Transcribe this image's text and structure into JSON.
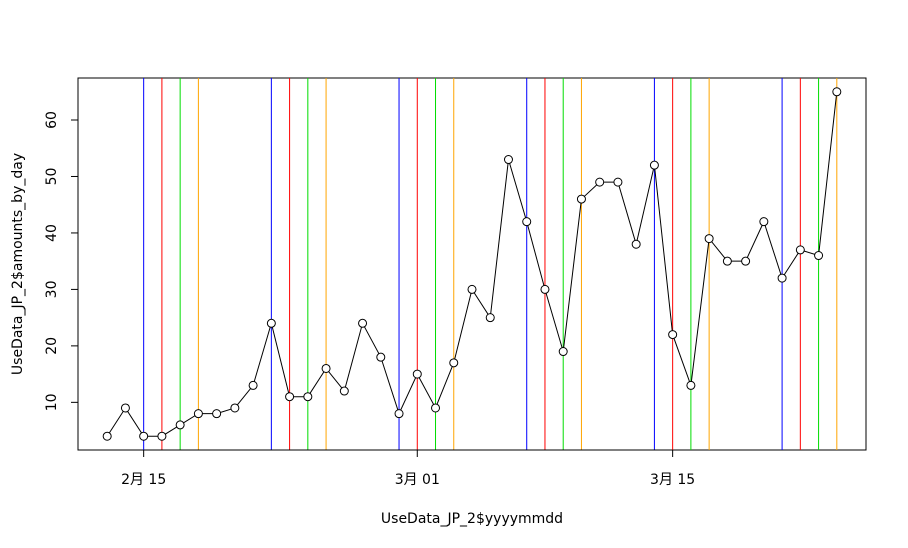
{
  "chart_data": {
    "type": "line",
    "xlabel": "UseData_JP_2$yyyymmdd",
    "ylabel": "UseData_JP_2$amounts_by_day",
    "x": [
      "2月 13",
      "2月 14",
      "2月 15",
      "2月 16",
      "2月 17",
      "2月 18",
      "2月 19",
      "2月 20",
      "2月 21",
      "2月 22",
      "2月 23",
      "2月 24",
      "2月 25",
      "2月 26",
      "2月 27",
      "2月 28",
      "2月 29",
      "3月 01",
      "3月 02",
      "3月 03",
      "3月 04",
      "3月 05",
      "3月 06",
      "3月 07",
      "3月 08",
      "3月 09",
      "3月 10",
      "3月 11",
      "3月 12",
      "3月 13",
      "3月 14",
      "3月 15",
      "3月 16",
      "3月 17",
      "3月 18",
      "3月 19",
      "3月 20",
      "3月 21",
      "3月 22",
      "3月 23",
      "3月 24"
    ],
    "series": [
      {
        "color": "#000000",
        "values": [
          4,
          9,
          4,
          4,
          6,
          8,
          8,
          9,
          13,
          24,
          11,
          11,
          16,
          12,
          24,
          18,
          8,
          15,
          9,
          17,
          30,
          25,
          53,
          42,
          30,
          19,
          46,
          49,
          49,
          38,
          52,
          22,
          13,
          39,
          35,
          35,
          42,
          32,
          37,
          36,
          65
        ]
      }
    ],
    "xticks": [
      "2月 15",
      "3月 01",
      "3月 15"
    ],
    "ylim": [
      1.56,
      67.44
    ],
    "yticks": [
      10,
      20,
      30,
      40,
      50,
      60
    ],
    "vlines": [
      {
        "color": "#0000ff",
        "x": [
          "2月 15",
          "2月 22",
          "2月 29",
          "3月 07",
          "3月 14",
          "3月 21"
        ]
      },
      {
        "color": "#ff0000",
        "x": [
          "2月 16",
          "2月 23",
          "3月 01",
          "3月 08",
          "3月 15",
          "3月 22"
        ]
      },
      {
        "color": "#00dd00",
        "x": [
          "2月 17",
          "2月 24",
          "3月 02",
          "3月 09",
          "3月 16",
          "3月 23"
        ]
      },
      {
        "color": "#ffa500",
        "x": [
          "2月 18",
          "2月 25",
          "3月 03",
          "3月 10",
          "3月 17",
          "3月 24"
        ]
      }
    ]
  }
}
